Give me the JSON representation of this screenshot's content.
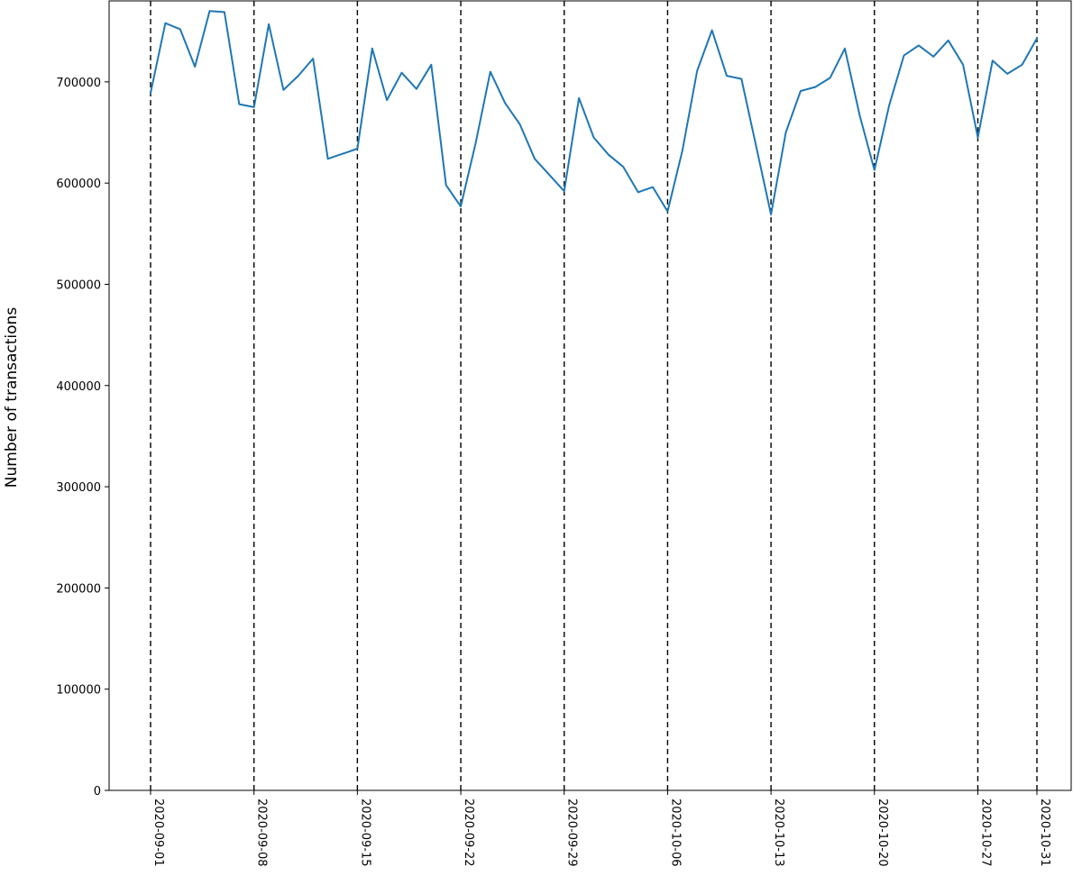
{
  "chart_data": {
    "type": "line",
    "title": "",
    "xlabel": "",
    "ylabel": "Number of transactions",
    "x_start": "2020-09-01",
    "x_end": "2020-10-31",
    "ylim": [
      0,
      780000
    ],
    "yticks": [
      0,
      100000,
      200000,
      300000,
      400000,
      500000,
      600000,
      700000
    ],
    "ytick_labels": [
      "0",
      "100000",
      "200000",
      "300000",
      "400000",
      "500000",
      "600000",
      "700000"
    ],
    "xticks": [
      "2020-09-01",
      "2020-09-08",
      "2020-09-15",
      "2020-09-22",
      "2020-09-29",
      "2020-10-06",
      "2020-10-13",
      "2020-10-20",
      "2020-10-27",
      "2020-10-31"
    ],
    "vlines": [
      "2020-09-01",
      "2020-09-08",
      "2020-09-15",
      "2020-09-22",
      "2020-09-29",
      "2020-10-06",
      "2020-10-13",
      "2020-10-20",
      "2020-10-27",
      "2020-10-31"
    ],
    "grid": false,
    "colors": {
      "series": "#1f77b4",
      "vlines": "#000000"
    },
    "series": [
      {
        "x": [
          "2020-09-01",
          "2020-09-02",
          "2020-09-03",
          "2020-09-04",
          "2020-09-05",
          "2020-09-06",
          "2020-09-07",
          "2020-09-08",
          "2020-09-09",
          "2020-09-10",
          "2020-09-11",
          "2020-09-12",
          "2020-09-13",
          "2020-09-14",
          "2020-09-15",
          "2020-09-16",
          "2020-09-17",
          "2020-09-18",
          "2020-09-19",
          "2020-09-20",
          "2020-09-21",
          "2020-09-22",
          "2020-09-23",
          "2020-09-24",
          "2020-09-25",
          "2020-09-26",
          "2020-09-27",
          "2020-09-28",
          "2020-09-29",
          "2020-09-30",
          "2020-10-01",
          "2020-10-02",
          "2020-10-03",
          "2020-10-04",
          "2020-10-05",
          "2020-10-06",
          "2020-10-07",
          "2020-10-08",
          "2020-10-09",
          "2020-10-10",
          "2020-10-11",
          "2020-10-12",
          "2020-10-13",
          "2020-10-14",
          "2020-10-15",
          "2020-10-16",
          "2020-10-17",
          "2020-10-18",
          "2020-10-19",
          "2020-10-20",
          "2020-10-21",
          "2020-10-22",
          "2020-10-23",
          "2020-10-24",
          "2020-10-25",
          "2020-10-26",
          "2020-10-27",
          "2020-10-28",
          "2020-10-29",
          "2020-10-30",
          "2020-10-31"
        ],
        "values": [
          689000,
          758000,
          752000,
          715000,
          770000,
          769000,
          678000,
          675000,
          757000,
          692000,
          706000,
          723000,
          624000,
          629000,
          634000,
          733000,
          682000,
          709000,
          693000,
          717000,
          598000,
          577000,
          639000,
          710000,
          679000,
          658000,
          624000,
          608000,
          592000,
          684000,
          645000,
          628000,
          616000,
          591000,
          596000,
          572000,
          632000,
          711000,
          751000,
          706000,
          703000,
          636000,
          569000,
          650000,
          691000,
          695000,
          704000,
          733000,
          667000,
          613000,
          677000,
          726000,
          736000,
          725000,
          741000,
          717000,
          645000,
          721000,
          708000,
          717000,
          743000
        ]
      }
    ]
  }
}
